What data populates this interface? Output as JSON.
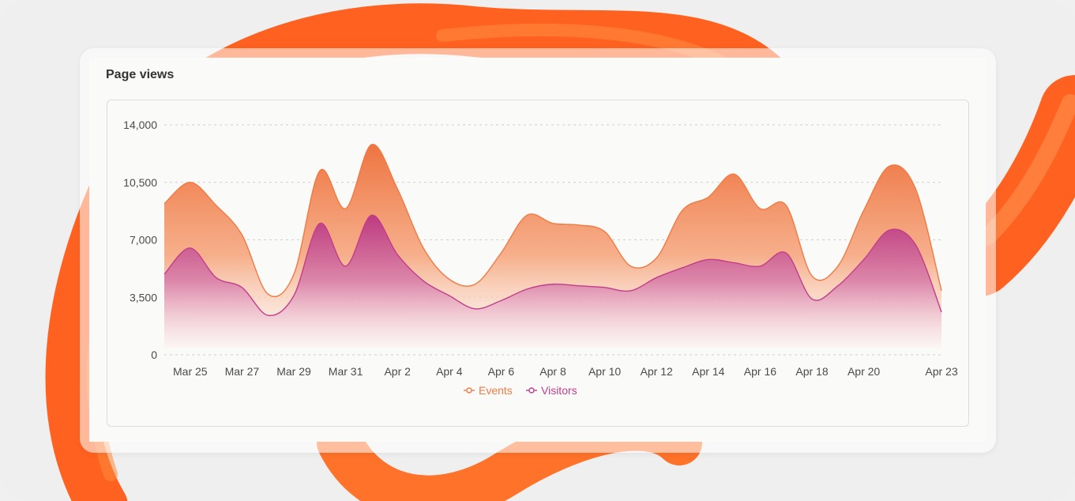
{
  "card": {
    "title": "Page views"
  },
  "colors": {
    "events": "#f07a43",
    "visitors": "#c23d8a",
    "grid": "#cfcfcf",
    "accent": "#ff5a14"
  },
  "chart_data": {
    "type": "area",
    "title": "Page views",
    "ylim": [
      0,
      14000
    ],
    "yticks": [
      0,
      3500,
      7000,
      10500,
      14000
    ],
    "ytick_labels": [
      "0",
      "3,500",
      "7,000",
      "10,500",
      "14,000"
    ],
    "grid": true,
    "legend_position": "bottom-center",
    "x": [
      "Mar 24",
      "Mar 25",
      "Mar 26",
      "Mar 27",
      "Mar 28",
      "Mar 29",
      "Mar 30",
      "Mar 31",
      "Apr 1",
      "Apr 2",
      "Apr 3",
      "Apr 4",
      "Apr 5",
      "Apr 6",
      "Apr 7",
      "Apr 8",
      "Apr 9",
      "Apr 10",
      "Apr 11",
      "Apr 12",
      "Apr 13",
      "Apr 14",
      "Apr 15",
      "Apr 16",
      "Apr 17",
      "Apr 18",
      "Apr 19",
      "Apr 20",
      "Apr 21",
      "Apr 22",
      "Apr 23"
    ],
    "xtick_labels": [
      "Mar 25",
      "Mar 27",
      "Mar 29",
      "Mar 31",
      "Apr 2",
      "Apr 4",
      "Apr 6",
      "Apr 8",
      "Apr 10",
      "Apr 12",
      "Apr 14",
      "Apr 16",
      "Apr 18",
      "Apr 20",
      "Apr 23"
    ],
    "series": [
      {
        "name": "Events",
        "values": [
          9200,
          10500,
          9100,
          7300,
          3700,
          4900,
          11200,
          8900,
          12800,
          10100,
          6500,
          4600,
          4300,
          6200,
          8500,
          8000,
          7900,
          7500,
          5400,
          5900,
          8800,
          9600,
          11000,
          8900,
          9100,
          4800,
          5400,
          8800,
          11500,
          10100,
          3900
        ]
      },
      {
        "name": "Visitors",
        "values": [
          4900,
          6500,
          4700,
          4100,
          2400,
          3600,
          8000,
          5400,
          8500,
          6100,
          4500,
          3600,
          2800,
          3300,
          4000,
          4300,
          4200,
          4100,
          3900,
          4700,
          5300,
          5800,
          5600,
          5400,
          6200,
          3400,
          4200,
          5800,
          7600,
          6700,
          2600
        ]
      }
    ]
  }
}
